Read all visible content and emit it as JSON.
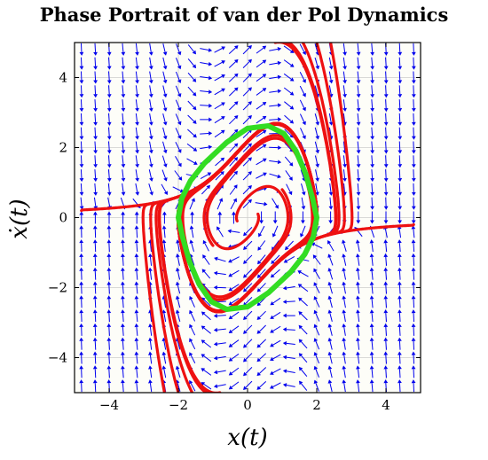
{
  "chart_data": {
    "type": "vector-field",
    "title": "Phase Portrait of van der Pol Dynamics",
    "xlabel": "x(t)",
    "ylabel": "ẋ(t)",
    "xlim": [
      -5,
      5
    ],
    "ylim": [
      -5,
      5
    ],
    "xticks": [
      -4,
      -2,
      0,
      2,
      4
    ],
    "yticks": [
      -4,
      -2,
      0,
      2,
      4
    ],
    "xtick_labels": [
      "−4",
      "−2",
      "0",
      "2",
      "4"
    ],
    "ytick_labels": [
      "−4",
      "−2",
      "0",
      "2",
      "4"
    ],
    "grid": true,
    "legend": "none",
    "system": {
      "name": "van der Pol",
      "mu": 1.0
    },
    "field": {
      "color": "#0000ee",
      "grid_step": 0.4,
      "range": [
        -4.8,
        4.8
      ]
    },
    "trajectories": {
      "color": "#ee1111",
      "integration_step": 0.01,
      "initial_conditions": [
        [
          -4.8,
          0.2
        ],
        [
          4.8,
          -0.2
        ],
        [
          -2.4,
          -5.0
        ],
        [
          -2.0,
          -5.0
        ],
        [
          -1.6,
          -5.0
        ],
        [
          -1.2,
          -5.0
        ],
        [
          -0.8,
          -5.0
        ],
        [
          2.4,
          5.0
        ],
        [
          2.0,
          5.0
        ],
        [
          1.6,
          5.0
        ],
        [
          1.2,
          5.0
        ],
        [
          0.8,
          5.0
        ],
        [
          0.3,
          0.1
        ],
        [
          -0.3,
          -0.1
        ],
        [
          1.0,
          0.8
        ],
        [
          -1.0,
          -0.8
        ]
      ]
    },
    "limit_cycle": {
      "color": "#33dd22",
      "points": [
        [
          2.0,
          0.0
        ],
        [
          1.9,
          -0.55
        ],
        [
          1.65,
          -1.05
        ],
        [
          1.25,
          -1.55
        ],
        [
          0.6,
          -2.15
        ],
        [
          0.0,
          -2.55
        ],
        [
          -0.6,
          -2.62
        ],
        [
          -1.05,
          -2.4
        ],
        [
          -1.4,
          -1.9
        ],
        [
          -1.68,
          -1.25
        ],
        [
          -1.88,
          -0.55
        ],
        [
          -2.0,
          0.0
        ],
        [
          -1.9,
          0.55
        ],
        [
          -1.65,
          1.05
        ],
        [
          -1.25,
          1.55
        ],
        [
          -0.6,
          2.15
        ],
        [
          0.0,
          2.55
        ],
        [
          0.6,
          2.62
        ],
        [
          1.05,
          2.4
        ],
        [
          1.4,
          1.9
        ],
        [
          1.68,
          1.25
        ],
        [
          1.88,
          0.55
        ],
        [
          2.0,
          0.0
        ]
      ]
    }
  }
}
